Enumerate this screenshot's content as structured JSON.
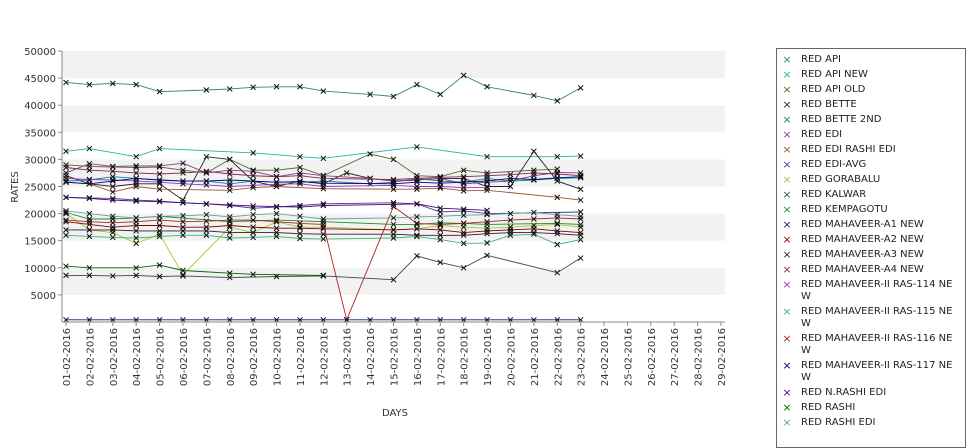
{
  "chart_data": {
    "type": "line",
    "title": "",
    "xlabel": "DAYS",
    "ylabel": "RATES",
    "ylim": [
      0,
      50000
    ],
    "yticks": [
      5000,
      10000,
      15000,
      20000,
      25000,
      30000,
      35000,
      40000,
      45000,
      50000
    ],
    "grid": "horizontal bands",
    "legend_position": "right",
    "x": [
      "01-02-2016",
      "02-02-2016",
      "03-02-2016",
      "04-02-2016",
      "05-02-2016",
      "06-02-2016",
      "07-02-2016",
      "08-02-2016",
      "09-02-2016",
      "10-02-2016",
      "11-02-2016",
      "12-02-2016",
      "13-02-2016",
      "14-02-2016",
      "15-02-2016",
      "16-02-2016",
      "17-02-2016",
      "18-02-2016",
      "19-02-2016",
      "20-02-2016",
      "21-02-2016",
      "22-02-2016",
      "23-02-2016",
      "24-02-2016",
      "25-02-2016",
      "26-02-2016",
      "27-02-2016",
      "28-02-2016",
      "29-02-2016"
    ],
    "series": [
      {
        "name": "RED API",
        "color": "#2e8b57",
        "values": [
          44200,
          43800,
          44000,
          43800,
          42500,
          null,
          42800,
          43000,
          43300,
          43400,
          43400,
          42600,
          null,
          42000,
          41600,
          43800,
          42000,
          45500,
          43400,
          null,
          41800,
          40800,
          43200,
          null,
          null,
          null,
          null,
          null,
          null
        ]
      },
      {
        "name": "RED API NEW",
        "color": "#20b2aa",
        "values": [
          31500,
          32000,
          null,
          30500,
          32000,
          null,
          null,
          null,
          31200,
          null,
          30500,
          30200,
          null,
          null,
          null,
          32300,
          null,
          null,
          30500,
          null,
          null,
          30500,
          30600,
          null,
          null,
          null,
          null,
          null,
          null
        ]
      },
      {
        "name": "RED API OLD",
        "color": "#556b2f",
        "values": [
          29000,
          28700,
          28600,
          28500,
          28600,
          28000,
          27500,
          30000,
          28000,
          28000,
          28500,
          27000,
          null,
          31000,
          30000,
          27000,
          26800,
          28000,
          27500,
          null,
          28000,
          28200,
          null,
          null,
          null,
          null,
          null,
          null,
          null
        ]
      },
      {
        "name": "RED BETTE",
        "color": "#222222",
        "values": [
          27000,
          25500,
          25000,
          25500,
          25500,
          22500,
          30500,
          30000,
          26000,
          25000,
          26000,
          25500,
          27500,
          26500,
          26000,
          26200,
          26500,
          26500,
          25000,
          25000,
          31500,
          26000,
          24500,
          null,
          null,
          null,
          null,
          null,
          null
        ]
      },
      {
        "name": "RED BETTE 2ND",
        "color": "#008b8b",
        "values": [
          26000,
          26200,
          26800,
          26500,
          26200,
          26000,
          26000,
          25500,
          26000,
          25800,
          25800,
          26000,
          null,
          25500,
          25800,
          26500,
          26000,
          25800,
          26500,
          26000,
          26200,
          26500,
          26600,
          null,
          null,
          null,
          null,
          null,
          null
        ]
      },
      {
        "name": "RED EDI",
        "color": "#8b3a8b",
        "values": [
          27500,
          29200,
          28700,
          28800,
          28800,
          29300,
          27500,
          28000,
          27800,
          26800,
          27500,
          27000,
          null,
          26500,
          26000,
          26200,
          26500,
          25500,
          25800,
          26000,
          27000,
          27600,
          27500,
          null,
          null,
          null,
          null,
          null,
          null
        ]
      },
      {
        "name": "RED EDI RASHI EDI",
        "color": "#a0522d",
        "values": [
          25800,
          25500,
          24000,
          25000,
          24500,
          null,
          null,
          24300,
          24800,
          25000,
          null,
          24600,
          null,
          null,
          24500,
          24500,
          24700,
          24200,
          24300,
          null,
          null,
          23000,
          22500,
          null,
          null,
          null,
          null,
          null,
          null
        ]
      },
      {
        "name": "RED EDI-AVG",
        "color": "#483d8b",
        "values": [
          23000,
          22900,
          22800,
          22500,
          22300,
          22000,
          21800,
          21500,
          21000,
          21200,
          21500,
          21800,
          null,
          null,
          22000,
          21800,
          20300,
          20500,
          20000,
          null,
          null,
          null,
          20300,
          null,
          null,
          null,
          null,
          null,
          null
        ]
      },
      {
        "name": "RED GORABALU",
        "color": "#9acd32",
        "values": [
          20000,
          17000,
          16500,
          14500,
          16200,
          8700,
          null,
          17500,
          16500,
          18500,
          17500,
          17500,
          null,
          null,
          17000,
          17200,
          17800,
          17500,
          17300,
          17500,
          17800,
          18000,
          17500,
          null,
          null,
          null,
          null,
          null,
          null
        ]
      },
      {
        "name": "RED KALWAR",
        "color": "#2f4f4f",
        "values": [
          8600,
          8600,
          8500,
          8600,
          8400,
          8500,
          null,
          8200,
          null,
          8400,
          null,
          8500,
          null,
          null,
          7800,
          12200,
          11000,
          10000,
          12300,
          null,
          null,
          9100,
          11800,
          null,
          null,
          null,
          null,
          null,
          null
        ]
      },
      {
        "name": "RED KEMPAGOTU",
        "color": "#228b22",
        "values": [
          20200,
          19000,
          19000,
          19200,
          19500,
          null,
          null,
          18500,
          null,
          18800,
          null,
          18500,
          null,
          null,
          18000,
          18000,
          18300,
          18200,
          18000,
          null,
          null,
          18200,
          18000,
          null,
          null,
          null,
          null,
          null,
          null
        ]
      },
      {
        "name": "RED MAHAVEER-A1 NEW",
        "color": "#191970",
        "values": [
          400,
          400,
          400,
          400,
          400,
          400,
          400,
          400,
          400,
          400,
          400,
          400,
          400,
          400,
          400,
          400,
          400,
          400,
          400,
          400,
          400,
          400,
          400,
          null,
          null,
          null,
          null,
          null,
          null
        ]
      },
      {
        "name": "RED MAHAVEER-A2 NEW",
        "color": "#800000",
        "values": [
          18500,
          18000,
          17500,
          17800,
          17800,
          17500,
          17500,
          17800,
          17500,
          17300,
          17300,
          17200,
          null,
          null,
          17000,
          17200,
          17000,
          16500,
          16800,
          17000,
          17200,
          16800,
          16500,
          null,
          null,
          null,
          null,
          null,
          null
        ]
      },
      {
        "name": "RED MAHAVEER-A3 NEW",
        "color": "#301934",
        "values": [
          17000,
          17000,
          17000,
          16800,
          16800,
          16800,
          16800,
          16500,
          16500,
          16500,
          16300,
          16200,
          null,
          null,
          16200,
          16000,
          16000,
          16000,
          16300,
          16500,
          16500,
          16300,
          16000,
          null,
          null,
          null,
          null,
          null,
          null
        ]
      },
      {
        "name": "RED MAHAVEER-A4 NEW",
        "color": "#8b2252",
        "values": [
          28500,
          28000,
          27800,
          27500,
          27300,
          27500,
          27800,
          27300,
          27000,
          26800,
          27000,
          26500,
          null,
          null,
          26300,
          26500,
          26700,
          26800,
          27000,
          27200,
          27500,
          27300,
          27000,
          null,
          null,
          null,
          null,
          null,
          null
        ]
      },
      {
        "name": "RED MAHAVEER-II RAS-114 NEW",
        "color": "#9932cc",
        "values": [
          26500,
          26300,
          26200,
          26000,
          25800,
          25500,
          25300,
          25000,
          25200,
          25400,
          25500,
          25000,
          null,
          null,
          25200,
          25000,
          25000,
          24800,
          24800,
          null,
          null,
          null,
          null,
          null,
          null,
          null,
          null,
          null,
          null
        ]
      },
      {
        "name": "RED MAHAVEER-II RAS-115 NEW",
        "color": "#3cb371",
        "values": [
          16000,
          15800,
          15600,
          15500,
          15800,
          16000,
          16000,
          15500,
          15600,
          15800,
          15400,
          15300,
          null,
          null,
          15500,
          15800,
          15200,
          14500,
          14600,
          16000,
          16200,
          14300,
          15200,
          null,
          null,
          null,
          null,
          null,
          null
        ]
      },
      {
        "name": "RED MAHAVEER-II RAS-116 NEW",
        "color": "#b22222",
        "values": [
          18800,
          18500,
          18300,
          18500,
          18800,
          18500,
          18600,
          18800,
          18800,
          18500,
          18200,
          18000,
          400,
          null,
          21300,
          18200,
          18000,
          18200,
          18500,
          18800,
          19000,
          19200,
          19000,
          null,
          null,
          null,
          null,
          null,
          null
        ]
      },
      {
        "name": "RED MAHAVEER-II RAS-117 NEW",
        "color": "#000080",
        "values": [
          25800,
          25500,
          26000,
          26500,
          26200,
          26000,
          26000,
          26200,
          26000,
          25800,
          25900,
          25600,
          null,
          null,
          25500,
          25800,
          25600,
          25800,
          26000,
          26500,
          26300,
          26600,
          26800,
          null,
          null,
          null,
          null,
          null,
          null
        ]
      },
      {
        "name": "RED N.RASHI EDI",
        "color": "#4b0082",
        "values": [
          23000,
          22800,
          22500,
          22300,
          22200,
          22000,
          21800,
          21600,
          21400,
          21300,
          21200,
          21500,
          null,
          null,
          21700,
          21800,
          21000,
          20800,
          20600,
          null,
          null,
          null,
          null,
          null,
          null,
          null,
          null,
          null,
          null
        ]
      },
      {
        "name": "RED RASHI",
        "color": "#006400",
        "values": [
          10300,
          10000,
          null,
          10000,
          10500,
          9500,
          null,
          9000,
          8800,
          null,
          null,
          8600,
          null,
          null,
          null,
          null,
          null,
          null,
          null,
          null,
          null,
          null,
          null,
          null,
          null,
          null,
          null,
          null,
          null
        ]
      },
      {
        "name": "RED RASHI EDI",
        "color": "#5f9ea0",
        "values": [
          20500,
          20000,
          19500,
          19200,
          19500,
          19600,
          19800,
          19400,
          19800,
          20000,
          19500,
          19000,
          null,
          null,
          19200,
          19400,
          19500,
          19700,
          19800,
          20000,
          20200,
          19800,
          19500,
          null,
          null,
          null,
          null,
          null,
          null
        ]
      }
    ]
  }
}
